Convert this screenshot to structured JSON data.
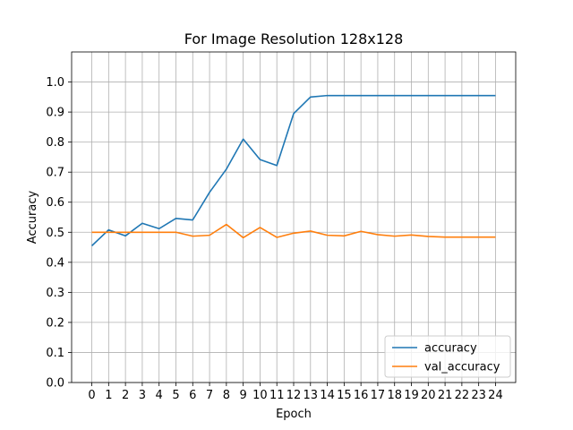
{
  "chart_data": {
    "type": "line",
    "title": "For Image Resolution 128x128",
    "xlabel": "Epoch",
    "ylabel": "Accuracy",
    "x": [
      0,
      1,
      2,
      3,
      4,
      5,
      6,
      7,
      8,
      9,
      10,
      11,
      12,
      13,
      14,
      15,
      16,
      17,
      18,
      19,
      20,
      21,
      22,
      23,
      24
    ],
    "xticks": [
      "0",
      "1",
      "2",
      "3",
      "4",
      "5",
      "6",
      "7",
      "8",
      "9",
      "10",
      "11",
      "12",
      "13",
      "14",
      "15",
      "16",
      "17",
      "18",
      "19",
      "20",
      "21",
      "22",
      "23",
      "24"
    ],
    "yticks": [
      "0.0",
      "0.1",
      "0.2",
      "0.3",
      "0.4",
      "0.5",
      "0.6",
      "0.7",
      "0.8",
      "0.9",
      "1.0"
    ],
    "ylim": [
      0,
      1.1
    ],
    "xlim": [
      -1.2,
      25.2
    ],
    "grid": true,
    "legend_position": "bottom-right",
    "series": [
      {
        "name": "accuracy",
        "color": "#1f77b4",
        "values": [
          0.455,
          0.508,
          0.488,
          0.53,
          0.512,
          0.546,
          0.541,
          0.633,
          0.71,
          0.81,
          0.742,
          0.722,
          0.895,
          0.95,
          0.955,
          0.955,
          0.955,
          0.955,
          0.955,
          0.955,
          0.955,
          0.955,
          0.955,
          0.955,
          0.955
        ]
      },
      {
        "name": "val_accuracy",
        "color": "#ff7f0e",
        "values": [
          0.5,
          0.5,
          0.5,
          0.5,
          0.5,
          0.5,
          0.487,
          0.49,
          0.526,
          0.482,
          0.516,
          0.483,
          0.497,
          0.504,
          0.49,
          0.488,
          0.503,
          0.492,
          0.487,
          0.491,
          0.486,
          0.484,
          0.484,
          0.484,
          0.484
        ]
      }
    ]
  }
}
